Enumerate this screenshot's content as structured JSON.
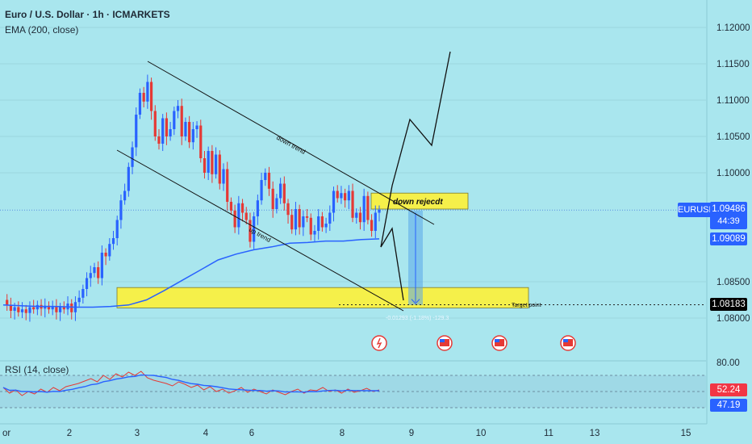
{
  "header": {
    "title": "Euro / U.S. Dollar · 1h · ICMARKETS",
    "ema_label": "EMA (200, close)",
    "rsi_label": "RSI (14, close)"
  },
  "symbol": "EURUSD",
  "price_tags": {
    "current_price": "1.09486",
    "countdown": "44:39",
    "ema_value": "1.09089",
    "target_value": "1.08183",
    "rsi_value": "52.24",
    "rsi_ma_value": "47.19"
  },
  "annotations": {
    "down_trend": "down trend",
    "up_trend": "up trend",
    "reject_box": "down rejecdt",
    "target_point": "Target point",
    "measure_text": "-0.01293 (-1.18%) -129.3"
  },
  "colors": {
    "background": "#a9e6ee",
    "bull_candle": "#2962ff",
    "bear_candle": "#e53935",
    "ema_line": "#2962ff",
    "zone_fill": "#f5f04a",
    "rsi_line": "#e53935",
    "rsi_ma_line": "#2962ff"
  },
  "chart_data": {
    "type": "candlestick",
    "y_axis": {
      "ticks": [
        "1.12000",
        "1.11500",
        "1.11000",
        "1.10500",
        "1.10000",
        "1.08500",
        "1.08000"
      ],
      "ylim": [
        1.0765,
        1.1225
      ]
    },
    "x_axis": {
      "ticks": [
        "or",
        "2",
        "3",
        "4",
        "6",
        "8",
        "9",
        "10",
        "11",
        "13",
        "15"
      ]
    },
    "close_path": [
      1.0825,
      1.0818,
      1.081,
      1.0815,
      1.0808,
      1.0812,
      1.0807,
      1.0815,
      1.0812,
      1.0818,
      1.0813,
      1.0817,
      1.0812,
      1.0816,
      1.0808,
      1.0815,
      1.0812,
      1.082,
      1.0808,
      1.0822,
      1.0828,
      1.084,
      1.0855,
      1.0862,
      1.087,
      1.0855,
      1.089,
      1.0885,
      1.0902,
      1.091,
      1.0935,
      1.0962,
      1.0975,
      1.1008,
      1.1035,
      1.108,
      1.111,
      1.1098,
      1.1125,
      1.1085,
      1.105,
      1.104,
      1.1075,
      1.105,
      1.106,
      1.1085,
      1.1092,
      1.105,
      1.107,
      1.1042,
      1.106,
      1.1065,
      1.102,
      1.1,
      1.103,
      1.0998,
      1.1025,
      1.0985,
      1.1005,
      1.096,
      1.0948,
      1.0925,
      1.0958,
      1.0945,
      1.0935,
      1.0905,
      1.094,
      1.0962,
      1.099,
      1.1,
      1.0978,
      1.095,
      1.0965,
      1.0985,
      1.0958,
      1.0942,
      1.0922,
      1.095,
      1.0925,
      1.094,
      1.0938,
      1.0915,
      1.092,
      1.094,
      1.0925,
      1.093,
      1.0945,
      1.0975,
      1.0965,
      1.0972,
      1.0962,
      1.0975,
      1.0938,
      1.0945,
      1.0932,
      1.0968,
      1.0935,
      1.092,
      1.0945,
      1.0949
    ],
    "ema_200": [
      1.0818,
      1.0817,
      1.0816,
      1.0816,
      1.0815,
      1.0815,
      1.0816,
      1.0818,
      1.0825,
      1.0838,
      1.0852,
      1.0866,
      1.088,
      1.0888,
      1.0894,
      1.0898,
      1.0903,
      1.0904,
      1.0906,
      1.0906,
      1.0908,
      1.0909
    ],
    "reject_zone": {
      "top": 1.0972,
      "bottom": 1.095
    },
    "support_zone": {
      "top": 1.0842,
      "bottom": 1.0814
    },
    "target_price": 1.08183,
    "measure": {
      "change": -0.01293,
      "percent": -1.18,
      "pips": -129.3
    },
    "rsi": {
      "levels": [
        80.0
      ],
      "value": 52.24,
      "ma_value": 47.19,
      "series": [
        55,
        48,
        52,
        45,
        50,
        47,
        53,
        49,
        55,
        51,
        56,
        58,
        60,
        63,
        66,
        62,
        70,
        65,
        72,
        68,
        74,
        70,
        75,
        67,
        64,
        62,
        60,
        57,
        62,
        59,
        55,
        58,
        52,
        56,
        50,
        53,
        48,
        51,
        55,
        49,
        53,
        50,
        47,
        52,
        49,
        46,
        50,
        53,
        48,
        52,
        51,
        55,
        50,
        52,
        48,
        53,
        49,
        51,
        54,
        50,
        52
      ]
    }
  }
}
